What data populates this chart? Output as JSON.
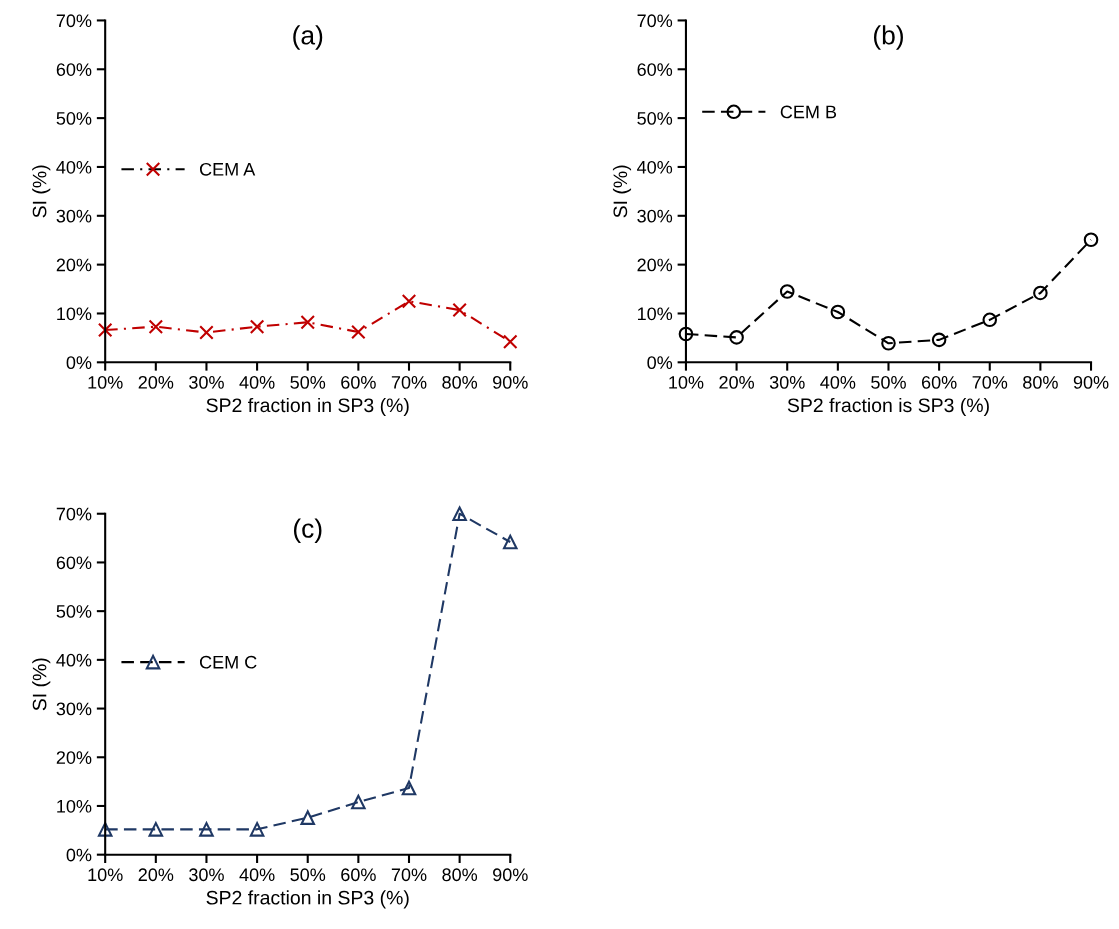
{
  "chart_data": [
    {
      "type": "line",
      "title": "(a)",
      "xlabel": "SP2 fraction in SP3 (%)",
      "ylabel": "SI (%)",
      "categories": [
        "10%",
        "20%",
        "30%",
        "40%",
        "50%",
        "60%",
        "70%",
        "80%",
        "90%"
      ],
      "series": [
        {
          "name": "CEM A",
          "color": "#c00000",
          "marker": "cross",
          "line_style": "dashdot",
          "values": [
            6.6,
            7.3,
            6.1,
            7.3,
            8.2,
            6.2,
            12.5,
            10.7,
            4.2
          ]
        }
      ],
      "ylim": [
        0,
        70
      ],
      "yticks": [
        {
          "value": 0,
          "label": "0%"
        },
        {
          "value": 10,
          "label": "10%"
        },
        {
          "value": 20,
          "label": "20%"
        },
        {
          "value": 30,
          "label": "30%"
        },
        {
          "value": 40,
          "label": "40%"
        },
        {
          "value": 50,
          "label": "50%"
        },
        {
          "value": 60,
          "label": "60%"
        },
        {
          "value": 70,
          "label": "70%"
        }
      ],
      "legend": "left"
    },
    {
      "type": "line",
      "title": "(b)",
      "xlabel": "SP2 fraction is SP3 (%)",
      "ylabel": "SI (%)",
      "categories": [
        "10%",
        "20%",
        "30%",
        "40%",
        "50%",
        "60%",
        "70%",
        "80%",
        "90%"
      ],
      "series": [
        {
          "name": "CEM B",
          "color": "#000000",
          "marker": "circle",
          "line_style": "dashed",
          "values": [
            5.8,
            5.1,
            14.5,
            10.3,
            3.9,
            4.6,
            8.7,
            14.2,
            25.1
          ]
        }
      ],
      "ylim": [
        0,
        70
      ],
      "yticks": [
        {
          "value": 0,
          "label": "0%"
        },
        {
          "value": 10,
          "label": "10%"
        },
        {
          "value": 20,
          "label": "20%"
        },
        {
          "value": 30,
          "label": "30%"
        },
        {
          "value": 40,
          "label": "40%"
        },
        {
          "value": 50,
          "label": "50%"
        },
        {
          "value": 60,
          "label": "60%"
        },
        {
          "value": 70,
          "label": "70%"
        }
      ],
      "legend": "top left"
    },
    {
      "type": "line",
      "title": "(c)",
      "xlabel": "SP2 fraction in SP3 (%)",
      "ylabel": "SI (%)",
      "categories": [
        "10%",
        "20%",
        "30%",
        "40%",
        "50%",
        "60%",
        "70%",
        "80%",
        "90%"
      ],
      "series": [
        {
          "name": "CEM C",
          "color": "#1f3864",
          "marker": "triangle",
          "line_style": "dashed",
          "values": [
            5.2,
            5.2,
            5.2,
            5.2,
            7.6,
            10.8,
            13.7,
            70,
            64.2
          ]
        }
      ],
      "ylim": [
        0,
        70
      ],
      "yticks": [
        {
          "value": 0,
          "label": "0%"
        },
        {
          "value": 10,
          "label": "10%"
        },
        {
          "value": 20,
          "label": "20%"
        },
        {
          "value": 30,
          "label": "30%"
        },
        {
          "value": 40,
          "label": "40%"
        },
        {
          "value": 50,
          "label": "50%"
        },
        {
          "value": 60,
          "label": "60%"
        },
        {
          "value": 70,
          "label": "70%"
        }
      ],
      "legend": "left"
    }
  ]
}
